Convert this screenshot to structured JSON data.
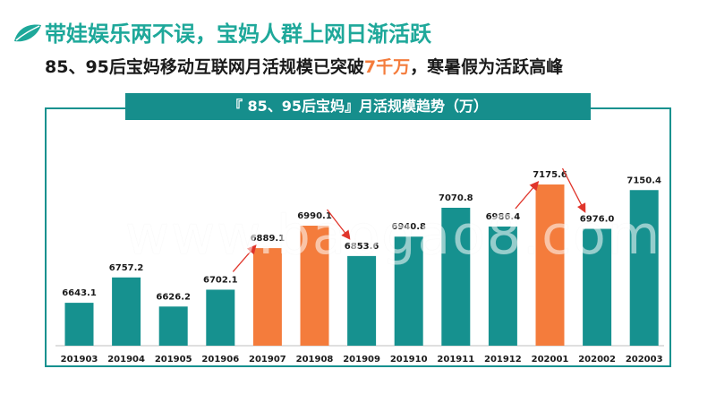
{
  "header": {
    "title": "带娃娱乐两不误，宝妈人群上网日渐活跃",
    "subtitle_pre": "85、95后宝妈移动互联网月活规模已突破",
    "subtitle_hl": "7千万",
    "subtitle_post": "，寒暑假为活跃高峰"
  },
  "watermark": "www.baogao8.com",
  "colors": {
    "teal": "#16918f",
    "orange": "#f47c3c",
    "arrow": "#e0352b",
    "title": "#1ea89a"
  },
  "icons": {
    "logo": "leaf-icon"
  },
  "chart_data": {
    "type": "bar",
    "title": "『 85、95后宝妈』月活规模趋势（万）",
    "categories": [
      "201903",
      "201904",
      "201905",
      "201906",
      "201907",
      "201908",
      "201909",
      "201910",
      "201911",
      "201912",
      "202001",
      "202002",
      "202003"
    ],
    "values": [
      6643.1,
      6757.2,
      6626.2,
      6702.1,
      6889.1,
      6990.1,
      6853.6,
      6940.8,
      7070.8,
      6986.4,
      7175.6,
      6976.0,
      7150.4
    ],
    "value_labels": [
      "6643.1",
      "6757.2",
      "6626.2",
      "6702.1",
      "6889.1",
      "6990.1",
      "6853.6",
      "6940.8",
      "7070.8",
      "6986.4",
      "7175.6",
      "6976.0",
      "7150.4"
    ],
    "highlighted": [
      "201907",
      "201908",
      "202001"
    ],
    "trend_arrows": [
      {
        "from": "201906",
        "to": "201907",
        "direction": "up"
      },
      {
        "from": "201908",
        "to": "201909",
        "direction": "down"
      },
      {
        "from": "201912",
        "to": "202001",
        "direction": "up"
      },
      {
        "from": "202001",
        "to": "202002",
        "direction": "down"
      }
    ],
    "ylim": [
      6450,
      7175.6
    ],
    "grid": false,
    "legend": "none"
  }
}
